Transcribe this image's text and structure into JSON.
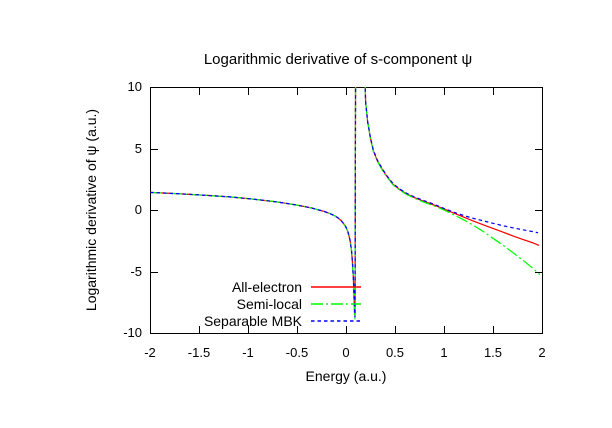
{
  "chart_data": {
    "type": "line",
    "title": "Logarithmic derivative of s-component ψ",
    "xlabel": "Energy (a.u.)",
    "ylabel": "Logarithmic derivative of ψ (a.u.)",
    "xlim": [
      -2,
      2
    ],
    "ylim": [
      -10,
      10
    ],
    "xticks": [
      -2,
      -1.5,
      -1,
      -0.5,
      0,
      0.5,
      1,
      1.5,
      2
    ],
    "yticks": [
      -10,
      -5,
      0,
      5,
      10
    ],
    "grid": false,
    "background": "#ffffff",
    "axis_color": "#000000",
    "legend_position": "inside-bottom-center",
    "pole_note": "All curves share a vertical asymptote near E≈0.1; values clipped at ±10",
    "series": [
      {
        "name": "All-electron",
        "color": "#ff0000",
        "dash": "solid",
        "dasharray": "",
        "branches": [
          [
            [
              -2,
              1.43
            ],
            [
              -1.7,
              1.32
            ],
            [
              -1.4,
              1.18
            ],
            [
              -1.2,
              1.07
            ],
            [
              -1,
              0.93
            ],
            [
              -0.85,
              0.8
            ],
            [
              -0.7,
              0.65
            ],
            [
              -0.6,
              0.53
            ],
            [
              -0.5,
              0.4
            ],
            [
              -0.42,
              0.28
            ],
            [
              -0.35,
              0.16
            ],
            [
              -0.3,
              0.05
            ],
            [
              -0.22,
              -0.12
            ],
            [
              -0.17,
              -0.27
            ],
            [
              -0.12,
              -0.45
            ],
            [
              -0.08,
              -0.65
            ],
            [
              -0.05,
              -0.85
            ],
            [
              -0.02,
              -1.15
            ],
            [
              0,
              -1.4
            ],
            [
              0.02,
              -1.8
            ],
            [
              0.04,
              -2.4
            ],
            [
              0.055,
              -3.2
            ],
            [
              0.065,
              -4.2
            ],
            [
              0.075,
              -5.6
            ],
            [
              0.082,
              -7
            ],
            [
              0.088,
              -8.3
            ],
            [
              0.092,
              -8.6
            ],
            [
              0.098,
              12
            ]
          ],
          [
            [
              0.19,
              12
            ],
            [
              0.2,
              8.8
            ],
            [
              0.22,
              7.2
            ],
            [
              0.25,
              5.8
            ],
            [
              0.28,
              4.8
            ],
            [
              0.32,
              4
            ],
            [
              0.37,
              3.3
            ],
            [
              0.42,
              2.7
            ],
            [
              0.48,
              2.1
            ],
            [
              0.55,
              1.65
            ],
            [
              0.62,
              1.3
            ],
            [
              0.7,
              1
            ],
            [
              0.8,
              0.68
            ],
            [
              0.9,
              0.4
            ],
            [
              1,
              0.08
            ],
            [
              1.1,
              -0.25
            ],
            [
              1.2,
              -0.58
            ],
            [
              1.3,
              -0.9
            ],
            [
              1.4,
              -1.2
            ],
            [
              1.5,
              -1.5
            ],
            [
              1.6,
              -1.8
            ],
            [
              1.7,
              -2.1
            ],
            [
              1.8,
              -2.38
            ],
            [
              1.9,
              -2.65
            ],
            [
              1.97,
              -2.88
            ]
          ]
        ]
      },
      {
        "name": "Semi-local",
        "color": "#00ff00",
        "dash": "dash-dot",
        "dasharray": "12 3 2 3",
        "branches": [
          [
            [
              -2,
              1.43
            ],
            [
              -1.7,
              1.32
            ],
            [
              -1.4,
              1.18
            ],
            [
              -1.2,
              1.07
            ],
            [
              -1,
              0.93
            ],
            [
              -0.85,
              0.8
            ],
            [
              -0.7,
              0.65
            ],
            [
              -0.6,
              0.53
            ],
            [
              -0.5,
              0.4
            ],
            [
              -0.42,
              0.28
            ],
            [
              -0.35,
              0.16
            ],
            [
              -0.3,
              0.05
            ],
            [
              -0.22,
              -0.12
            ],
            [
              -0.17,
              -0.27
            ],
            [
              -0.12,
              -0.45
            ],
            [
              -0.08,
              -0.65
            ],
            [
              -0.05,
              -0.85
            ],
            [
              -0.02,
              -1.15
            ],
            [
              0,
              -1.4
            ],
            [
              0.02,
              -1.8
            ],
            [
              0.04,
              -2.4
            ],
            [
              0.055,
              -3.2
            ],
            [
              0.065,
              -4.2
            ],
            [
              0.075,
              -5.6
            ],
            [
              0.082,
              -7
            ],
            [
              0.088,
              -8.5
            ],
            [
              0.092,
              -8.9
            ],
            [
              0.098,
              12
            ]
          ],
          [
            [
              0.19,
              12
            ],
            [
              0.2,
              8.8
            ],
            [
              0.22,
              7.2
            ],
            [
              0.25,
              5.8
            ],
            [
              0.28,
              4.75
            ],
            [
              0.32,
              3.95
            ],
            [
              0.37,
              3.25
            ],
            [
              0.42,
              2.65
            ],
            [
              0.48,
              2.05
            ],
            [
              0.55,
              1.6
            ],
            [
              0.62,
              1.25
            ],
            [
              0.7,
              0.95
            ],
            [
              0.8,
              0.62
            ],
            [
              0.9,
              0.33
            ],
            [
              1,
              0
            ],
            [
              1.1,
              -0.4
            ],
            [
              1.2,
              -0.8
            ],
            [
              1.3,
              -1.25
            ],
            [
              1.4,
              -1.75
            ],
            [
              1.5,
              -2.3
            ],
            [
              1.6,
              -2.85
            ],
            [
              1.7,
              -3.45
            ],
            [
              1.8,
              -4.05
            ],
            [
              1.9,
              -4.7
            ],
            [
              1.98,
              -5.25
            ]
          ]
        ]
      },
      {
        "name": "Separable MBK",
        "color": "#0000ff",
        "dash": "dashed",
        "dasharray": "3.5 3",
        "branches": [
          [
            [
              -2,
              1.43
            ],
            [
              -1.7,
              1.32
            ],
            [
              -1.4,
              1.18
            ],
            [
              -1.2,
              1.07
            ],
            [
              -1,
              0.93
            ],
            [
              -0.85,
              0.8
            ],
            [
              -0.7,
              0.65
            ],
            [
              -0.6,
              0.53
            ],
            [
              -0.5,
              0.4
            ],
            [
              -0.42,
              0.28
            ],
            [
              -0.35,
              0.16
            ],
            [
              -0.3,
              0.05
            ],
            [
              -0.22,
              -0.12
            ],
            [
              -0.17,
              -0.27
            ],
            [
              -0.12,
              -0.45
            ],
            [
              -0.08,
              -0.65
            ],
            [
              -0.05,
              -0.85
            ],
            [
              -0.02,
              -1.15
            ],
            [
              0,
              -1.4
            ],
            [
              0.02,
              -1.8
            ],
            [
              0.04,
              -2.4
            ],
            [
              0.055,
              -3.2
            ],
            [
              0.065,
              -4.2
            ],
            [
              0.075,
              -5.6
            ],
            [
              0.082,
              -7
            ],
            [
              0.088,
              -8.4
            ],
            [
              0.092,
              -8.75
            ],
            [
              0.098,
              12
            ]
          ],
          [
            [
              0.19,
              12
            ],
            [
              0.2,
              8.8
            ],
            [
              0.22,
              7.2
            ],
            [
              0.25,
              5.85
            ],
            [
              0.28,
              4.85
            ],
            [
              0.32,
              4.05
            ],
            [
              0.37,
              3.35
            ],
            [
              0.42,
              2.75
            ],
            [
              0.48,
              2.15
            ],
            [
              0.55,
              1.7
            ],
            [
              0.62,
              1.35
            ],
            [
              0.7,
              1.05
            ],
            [
              0.8,
              0.75
            ],
            [
              0.9,
              0.46
            ],
            [
              1,
              0.12
            ],
            [
              1.1,
              -0.18
            ],
            [
              1.2,
              -0.45
            ],
            [
              1.3,
              -0.68
            ],
            [
              1.4,
              -0.88
            ],
            [
              1.5,
              -1.08
            ],
            [
              1.6,
              -1.28
            ],
            [
              1.7,
              -1.45
            ],
            [
              1.8,
              -1.6
            ],
            [
              1.9,
              -1.75
            ],
            [
              1.96,
              -1.85
            ]
          ]
        ]
      }
    ]
  }
}
